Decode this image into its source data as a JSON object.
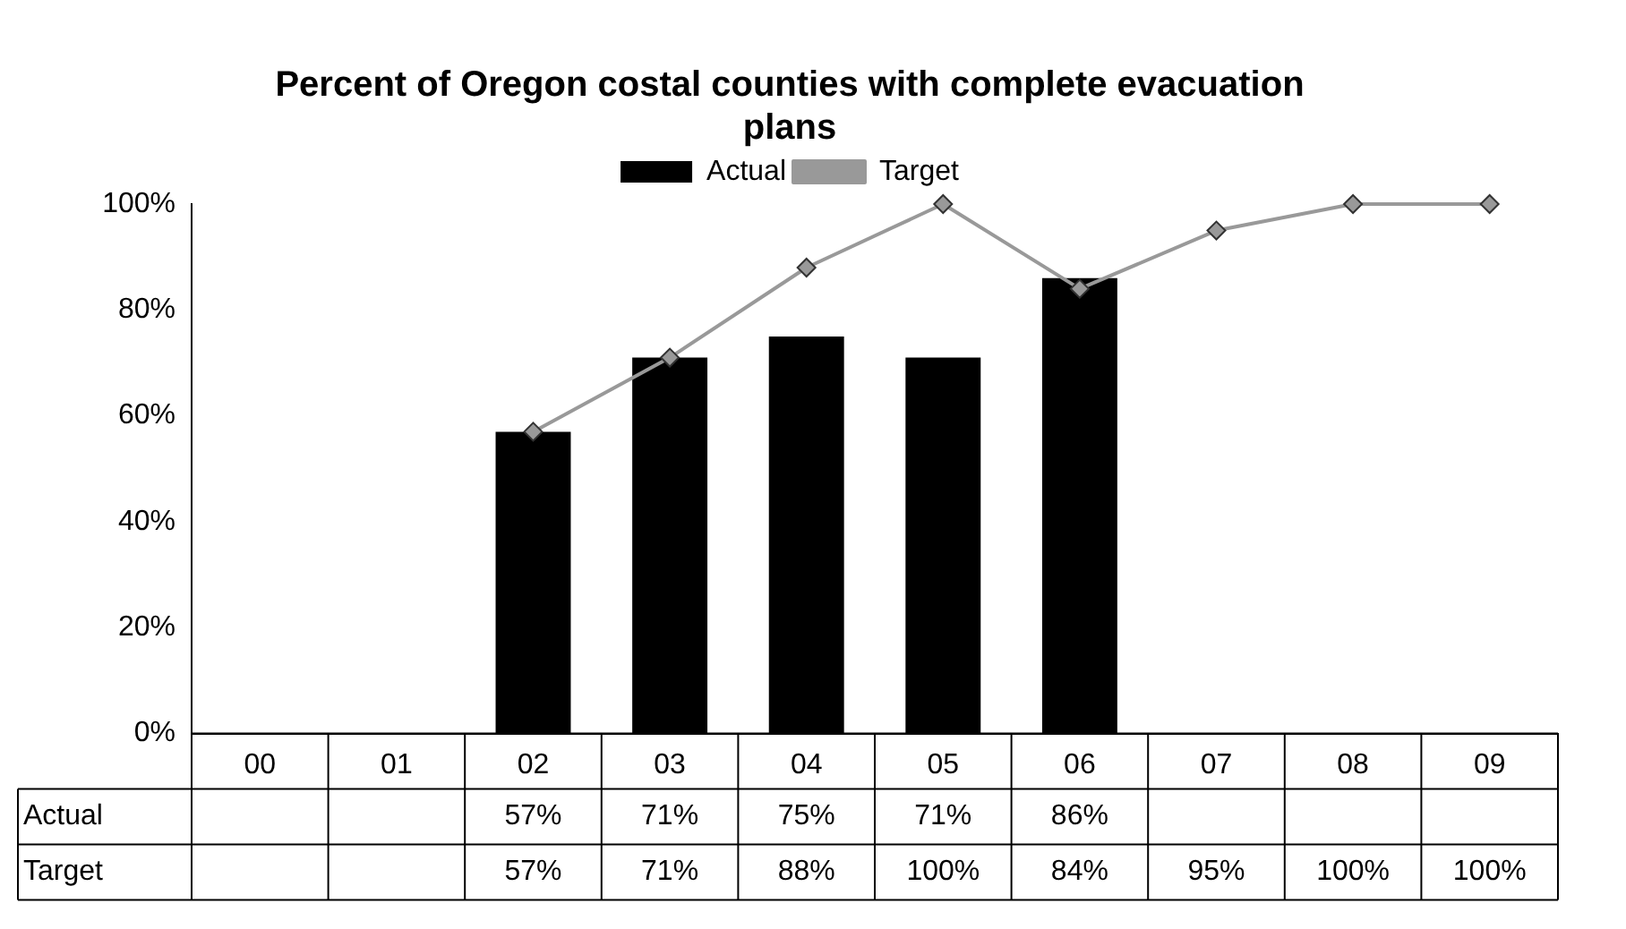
{
  "chart_data": {
    "type": "bar",
    "title": "Percent of Oregon costal counties with complete evacuation plans",
    "categories": [
      "00",
      "01",
      "02",
      "03",
      "04",
      "05",
      "06",
      "07",
      "08",
      "09"
    ],
    "series": [
      {
        "name": "Actual",
        "color": "#000000",
        "values": [
          null,
          null,
          57,
          71,
          75,
          71,
          86,
          null,
          null,
          null
        ],
        "value_labels": [
          null,
          null,
          "57%",
          "71%",
          "75%",
          "71%",
          "86%",
          null,
          null,
          null
        ]
      },
      {
        "name": "Target",
        "type": "line",
        "color": "#999999",
        "marker": "diamond",
        "values": [
          null,
          null,
          57,
          71,
          88,
          100,
          84,
          95,
          100,
          100
        ],
        "value_labels": [
          null,
          null,
          "57%",
          "71%",
          "88%",
          "100%",
          "84%",
          "95%",
          "100%",
          "100%"
        ]
      }
    ],
    "ylim": [
      0,
      100
    ],
    "yticks": [
      {
        "value": 0,
        "label": "0%"
      },
      {
        "value": 20,
        "label": "20%"
      },
      {
        "value": 40,
        "label": "40%"
      },
      {
        "value": 60,
        "label": "60%"
      },
      {
        "value": 80,
        "label": "80%"
      },
      {
        "value": 100,
        "label": "100%"
      }
    ],
    "grid": false,
    "legend": "top"
  }
}
